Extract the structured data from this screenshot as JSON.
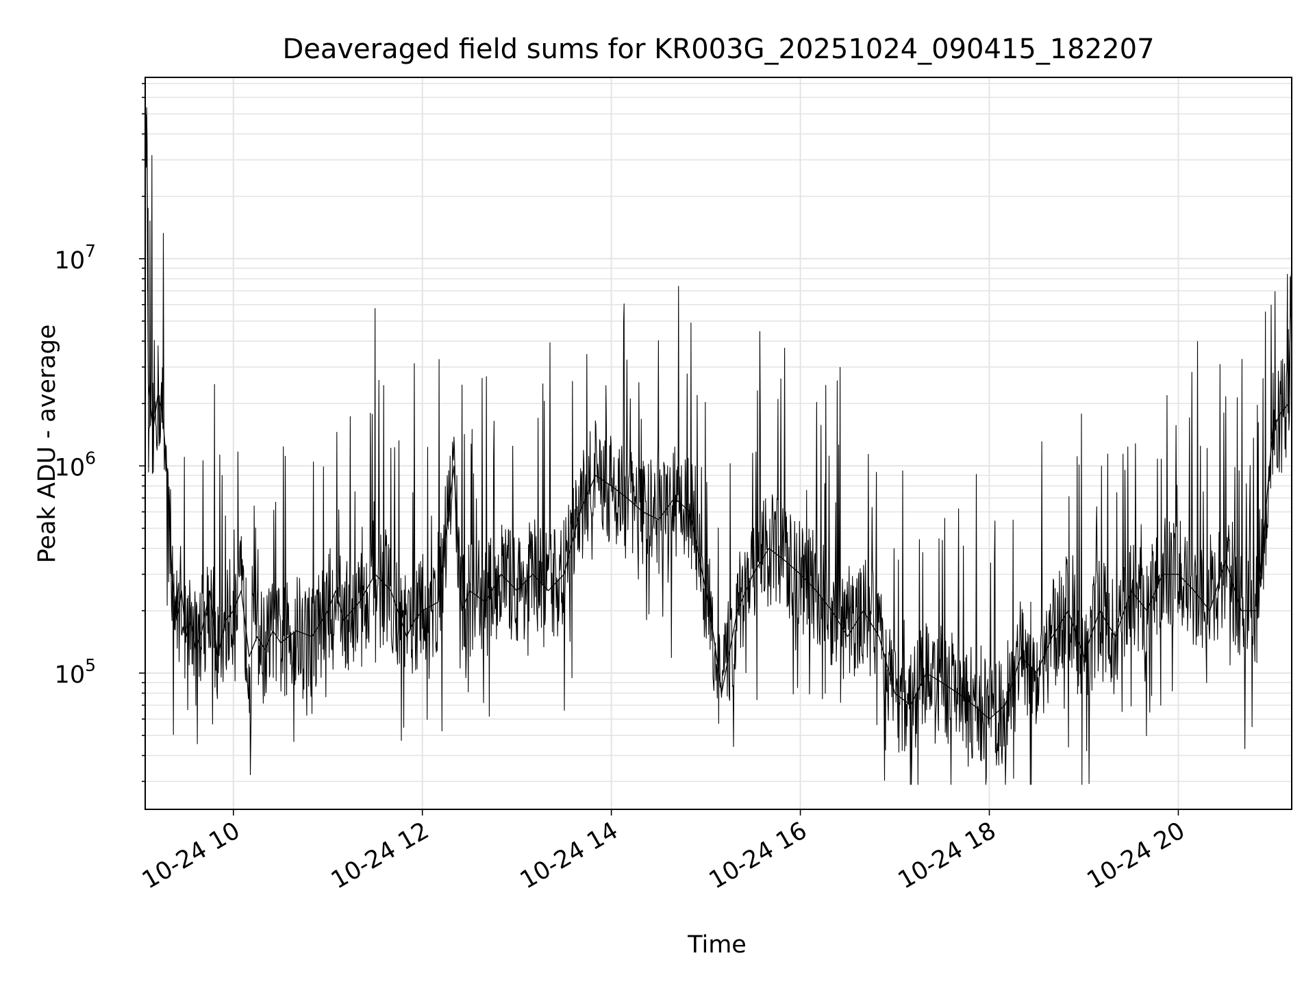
{
  "chart_data": {
    "type": "line",
    "title": "Deaveraged field sums for KR003G_20251024_090415_182207",
    "xlabel": "Time",
    "ylabel": "Peak ADU - average",
    "yscale": "log",
    "ylim": [
      22000,
      75000000
    ],
    "xlim": [
      "2025-10-24 09:04",
      "2025-10-24 21:12"
    ],
    "x_ticks": [
      {
        "value": "2025-10-24 10:00",
        "label": "10-24 10"
      },
      {
        "value": "2025-10-24 12:00",
        "label": "10-24 12"
      },
      {
        "value": "2025-10-24 14:00",
        "label": "10-24 14"
      },
      {
        "value": "2025-10-24 16:00",
        "label": "10-24 16"
      },
      {
        "value": "2025-10-24 18:00",
        "label": "10-24 18"
      },
      {
        "value": "2025-10-24 20:00",
        "label": "10-24 20"
      }
    ],
    "y_ticks": [
      {
        "value": 100000,
        "base": "10",
        "exp": "5"
      },
      {
        "value": 1000000,
        "base": "10",
        "exp": "6"
      },
      {
        "value": 10000000,
        "base": "10",
        "exp": "7"
      }
    ],
    "grid": true,
    "line_color": "#000000",
    "series": [
      {
        "x": [
          "2025-10-24 09:04",
          "2025-10-24 09:05",
          "2025-10-24 09:06",
          "2025-10-24 09:09",
          "2025-10-24 09:12",
          "2025-10-24 09:15",
          "2025-10-24 09:18",
          "2025-10-24 09:21",
          "2025-10-24 09:24",
          "2025-10-24 09:27",
          "2025-10-24 09:30",
          "2025-10-24 09:33",
          "2025-10-24 09:36",
          "2025-10-24 09:40",
          "2025-10-24 09:45",
          "2025-10-24 09:50",
          "2025-10-24 09:55",
          "2025-10-24 10:00",
          "2025-10-24 10:05",
          "2025-10-24 10:10",
          "2025-10-24 10:15",
          "2025-10-24 10:20",
          "2025-10-24 10:25",
          "2025-10-24 10:30",
          "2025-10-24 10:40",
          "2025-10-24 10:50",
          "2025-10-24 11:00",
          "2025-10-24 11:05",
          "2025-10-24 11:10",
          "2025-10-24 11:20",
          "2025-10-24 11:30",
          "2025-10-24 11:40",
          "2025-10-24 11:50",
          "2025-10-24 11:55",
          "2025-10-24 12:00",
          "2025-10-24 12:10",
          "2025-10-24 12:20",
          "2025-10-24 12:25",
          "2025-10-24 12:30",
          "2025-10-24 12:40",
          "2025-10-24 12:50",
          "2025-10-24 13:00",
          "2025-10-24 13:10",
          "2025-10-24 13:20",
          "2025-10-24 13:30",
          "2025-10-24 13:40",
          "2025-10-24 13:50",
          "2025-10-24 14:00",
          "2025-10-24 14:10",
          "2025-10-24 14:20",
          "2025-10-24 14:30",
          "2025-10-24 14:40",
          "2025-10-24 14:50",
          "2025-10-24 15:00",
          "2025-10-24 15:05",
          "2025-10-24 15:10",
          "2025-10-24 15:20",
          "2025-10-24 15:30",
          "2025-10-24 15:40",
          "2025-10-24 15:50",
          "2025-10-24 16:00",
          "2025-10-24 16:10",
          "2025-10-24 16:20",
          "2025-10-24 16:30",
          "2025-10-24 16:40",
          "2025-10-24 16:50",
          "2025-10-24 17:00",
          "2025-10-24 17:10",
          "2025-10-24 17:20",
          "2025-10-24 17:30",
          "2025-10-24 17:40",
          "2025-10-24 17:50",
          "2025-10-24 18:00",
          "2025-10-24 18:10",
          "2025-10-24 18:20",
          "2025-10-24 18:30",
          "2025-10-24 18:40",
          "2025-10-24 18:50",
          "2025-10-24 19:00",
          "2025-10-24 19:10",
          "2025-10-24 19:20",
          "2025-10-24 19:30",
          "2025-10-24 19:40",
          "2025-10-24 19:50",
          "2025-10-24 20:00",
          "2025-10-24 20:10",
          "2025-10-24 20:20",
          "2025-10-24 20:30",
          "2025-10-24 20:40",
          "2025-10-24 20:50",
          "2025-10-24 21:00",
          "2025-10-24 21:05",
          "2025-10-24 21:10",
          "2025-10-24 21:12"
        ],
        "y": [
          50000000,
          48000000,
          2500000,
          1500000,
          2200000,
          1800000,
          900000,
          300000,
          180000,
          250000,
          150000,
          180000,
          130000,
          160000,
          250000,
          120000,
          180000,
          200000,
          250000,
          120000,
          150000,
          130000,
          160000,
          140000,
          160000,
          150000,
          200000,
          250000,
          180000,
          220000,
          300000,
          250000,
          150000,
          180000,
          200000,
          220000,
          1000000,
          200000,
          250000,
          220000,
          300000,
          250000,
          300000,
          250000,
          300000,
          600000,
          900000,
          800000,
          700000,
          600000,
          550000,
          700000,
          600000,
          250000,
          150000,
          80000,
          200000,
          300000,
          400000,
          350000,
          300000,
          250000,
          200000,
          150000,
          200000,
          150000,
          80000,
          70000,
          100000,
          90000,
          80000,
          70000,
          60000,
          70000,
          120000,
          100000,
          150000,
          200000,
          120000,
          200000,
          150000,
          250000,
          200000,
          300000,
          300000,
          250000,
          200000,
          350000,
          200000,
          200000,
          1500000,
          1800000,
          2000000,
          10000000
        ]
      }
    ]
  }
}
